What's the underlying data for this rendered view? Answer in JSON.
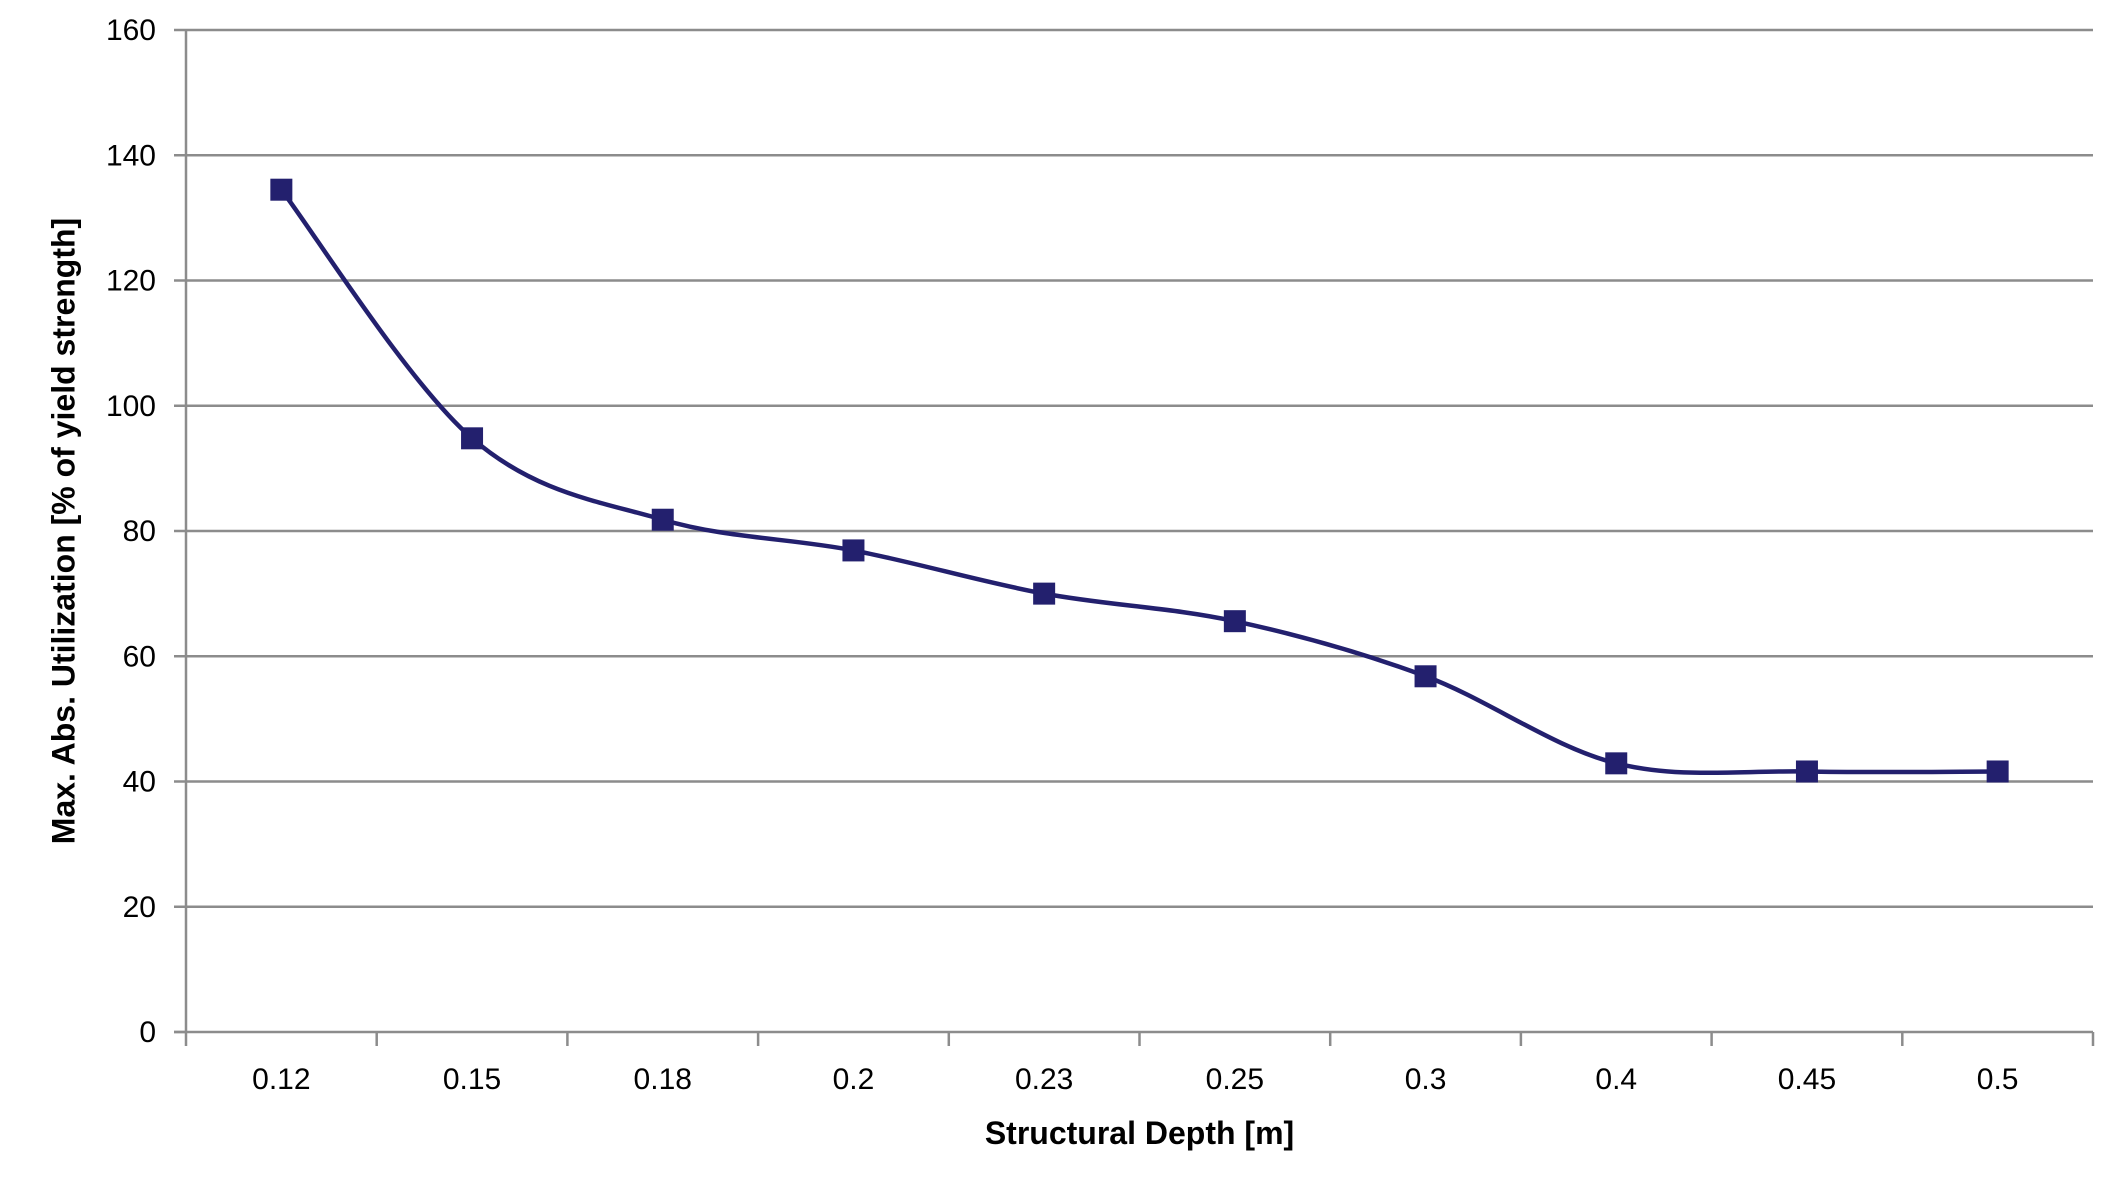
{
  "chart_data": {
    "type": "line",
    "title": "",
    "xlabel": "Structural Depth [m]",
    "ylabel": "Max. Abs. Utilization [% of yield strength]",
    "categories": [
      "0.12",
      "0.15",
      "0.18",
      "0.2",
      "0.23",
      "0.25",
      "0.3",
      "0.4",
      "0.45",
      "0.5"
    ],
    "y_ticks": [
      "0",
      "20",
      "40",
      "60",
      "80",
      "100",
      "120",
      "140",
      "160"
    ],
    "ylim": [
      0,
      160
    ],
    "grid": true,
    "legend": "none",
    "smooth": true,
    "marker": "square",
    "series": [
      {
        "values": [
          134.5,
          94.8,
          81.8,
          76.9,
          70.0,
          65.6,
          56.8,
          42.9,
          41.6,
          41.6
        ],
        "color": "#23206e"
      }
    ],
    "colors": {
      "grid": "#8c8c8c",
      "axis": "#8c8c8c"
    }
  }
}
